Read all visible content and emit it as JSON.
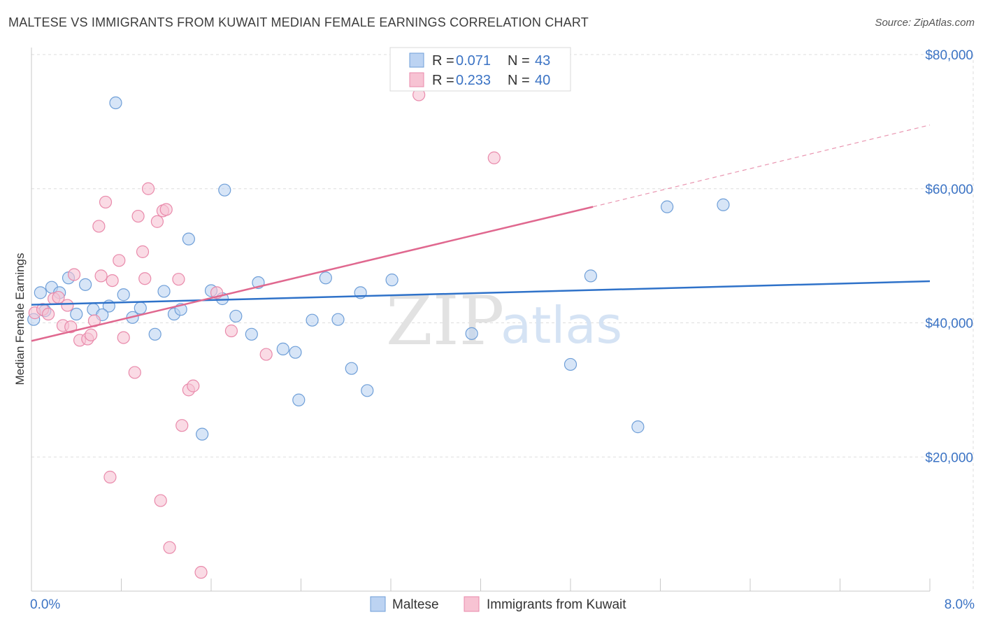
{
  "title": "MALTESE VS IMMIGRANTS FROM KUWAIT MEDIAN FEMALE EARNINGS CORRELATION CHART",
  "source": "Source: ZipAtlas.com",
  "watermark": {
    "zip": "ZIP",
    "atlas": "atlas"
  },
  "colors": {
    "maltese_fill": "#bcd3f2",
    "maltese_stroke": "#6f9fd8",
    "maltese_line": "#2f72c9",
    "kuwait_fill": "#f7c3d3",
    "kuwait_stroke": "#e98aab",
    "kuwait_line": "#e0688f",
    "grid": "#dddddd",
    "axis_text": "#3b73c4"
  },
  "legend": {
    "rows": [
      {
        "r_label": "R = ",
        "r_value": "0.071",
        "n_label": "N = ",
        "n_value": "43"
      },
      {
        "r_label": "R = ",
        "r_value": "0.233",
        "n_label": "N = ",
        "n_value": "40"
      }
    ]
  },
  "chart_data": {
    "type": "scatter",
    "title": "MALTESE VS IMMIGRANTS FROM KUWAIT MEDIAN FEMALE EARNINGS CORRELATION CHART",
    "xlabel": "",
    "ylabel": "Median Female Earnings",
    "xlim": [
      0,
      8
    ],
    "ylim": [
      0,
      80000
    ],
    "x_tick_labels": [
      "0.0%",
      "8.0%"
    ],
    "y_ticks": [
      {
        "value": 20000,
        "label": "$20,000"
      },
      {
        "value": 40000,
        "label": "$40,000"
      },
      {
        "value": 60000,
        "label": "$60,000"
      },
      {
        "value": 80000,
        "label": "$80,000"
      }
    ],
    "grid": true,
    "legend_position": "top-center",
    "series": [
      {
        "name": "Maltese",
        "trend": {
          "x0": 0,
          "y0": 42700,
          "x1": 8.0,
          "y1": 46200,
          "dashed_from": null
        },
        "points": [
          [
            0.02,
            40500
          ],
          [
            0.08,
            44500
          ],
          [
            0.18,
            45300
          ],
          [
            0.25,
            44500
          ],
          [
            0.33,
            46700
          ],
          [
            0.4,
            41300
          ],
          [
            0.48,
            45700
          ],
          [
            0.55,
            42000
          ],
          [
            0.69,
            42500
          ],
          [
            0.75,
            72800
          ],
          [
            0.82,
            44200
          ],
          [
            0.9,
            40800
          ],
          [
            0.97,
            42200
          ],
          [
            1.1,
            38300
          ],
          [
            1.18,
            44700
          ],
          [
            1.27,
            41300
          ],
          [
            1.33,
            42000
          ],
          [
            1.4,
            52500
          ],
          [
            1.52,
            23400
          ],
          [
            1.6,
            44800
          ],
          [
            1.7,
            43600
          ],
          [
            1.72,
            59800
          ],
          [
            1.82,
            41000
          ],
          [
            1.96,
            38300
          ],
          [
            2.02,
            46000
          ],
          [
            2.24,
            36100
          ],
          [
            2.35,
            35600
          ],
          [
            2.38,
            28500
          ],
          [
            2.5,
            40400
          ],
          [
            2.62,
            46700
          ],
          [
            2.73,
            40500
          ],
          [
            2.85,
            33200
          ],
          [
            2.93,
            44500
          ],
          [
            2.99,
            29900
          ],
          [
            3.21,
            46400
          ],
          [
            3.92,
            38400
          ],
          [
            4.8,
            33800
          ],
          [
            4.98,
            47000
          ],
          [
            5.4,
            24500
          ],
          [
            5.66,
            57300
          ],
          [
            6.16,
            57600
          ],
          [
            0.12,
            41800
          ],
          [
            0.63,
            41200
          ]
        ]
      },
      {
        "name": "Immigrants from Kuwait",
        "trend": {
          "x0": 0,
          "y0": 37300,
          "x1": 5.0,
          "y1": 57300,
          "dashed_to_x": 8.0,
          "dashed_to_y": 69500
        },
        "points": [
          [
            0.03,
            41500
          ],
          [
            0.1,
            42000
          ],
          [
            0.15,
            41300
          ],
          [
            0.2,
            43600
          ],
          [
            0.24,
            43800
          ],
          [
            0.28,
            39600
          ],
          [
            0.32,
            42600
          ],
          [
            0.35,
            39400
          ],
          [
            0.38,
            47200
          ],
          [
            0.43,
            37400
          ],
          [
            0.5,
            37600
          ],
          [
            0.53,
            38200
          ],
          [
            0.56,
            40300
          ],
          [
            0.6,
            54400
          ],
          [
            0.62,
            47000
          ],
          [
            0.7,
            17000
          ],
          [
            0.72,
            46300
          ],
          [
            0.78,
            49300
          ],
          [
            0.82,
            37800
          ],
          [
            0.92,
            32600
          ],
          [
            0.95,
            55900
          ],
          [
            0.99,
            50600
          ],
          [
            1.01,
            46600
          ],
          [
            1.04,
            60000
          ],
          [
            1.12,
            55100
          ],
          [
            1.15,
            13500
          ],
          [
            1.17,
            56700
          ],
          [
            1.2,
            56900
          ],
          [
            1.23,
            6500
          ],
          [
            1.31,
            46500
          ],
          [
            1.34,
            24700
          ],
          [
            1.4,
            30000
          ],
          [
            1.44,
            30600
          ],
          [
            1.51,
            2800
          ],
          [
            1.65,
            44500
          ],
          [
            1.78,
            38800
          ],
          [
            2.09,
            35300
          ],
          [
            3.45,
            74000
          ],
          [
            4.12,
            64600
          ],
          [
            0.66,
            58000
          ]
        ]
      }
    ]
  }
}
